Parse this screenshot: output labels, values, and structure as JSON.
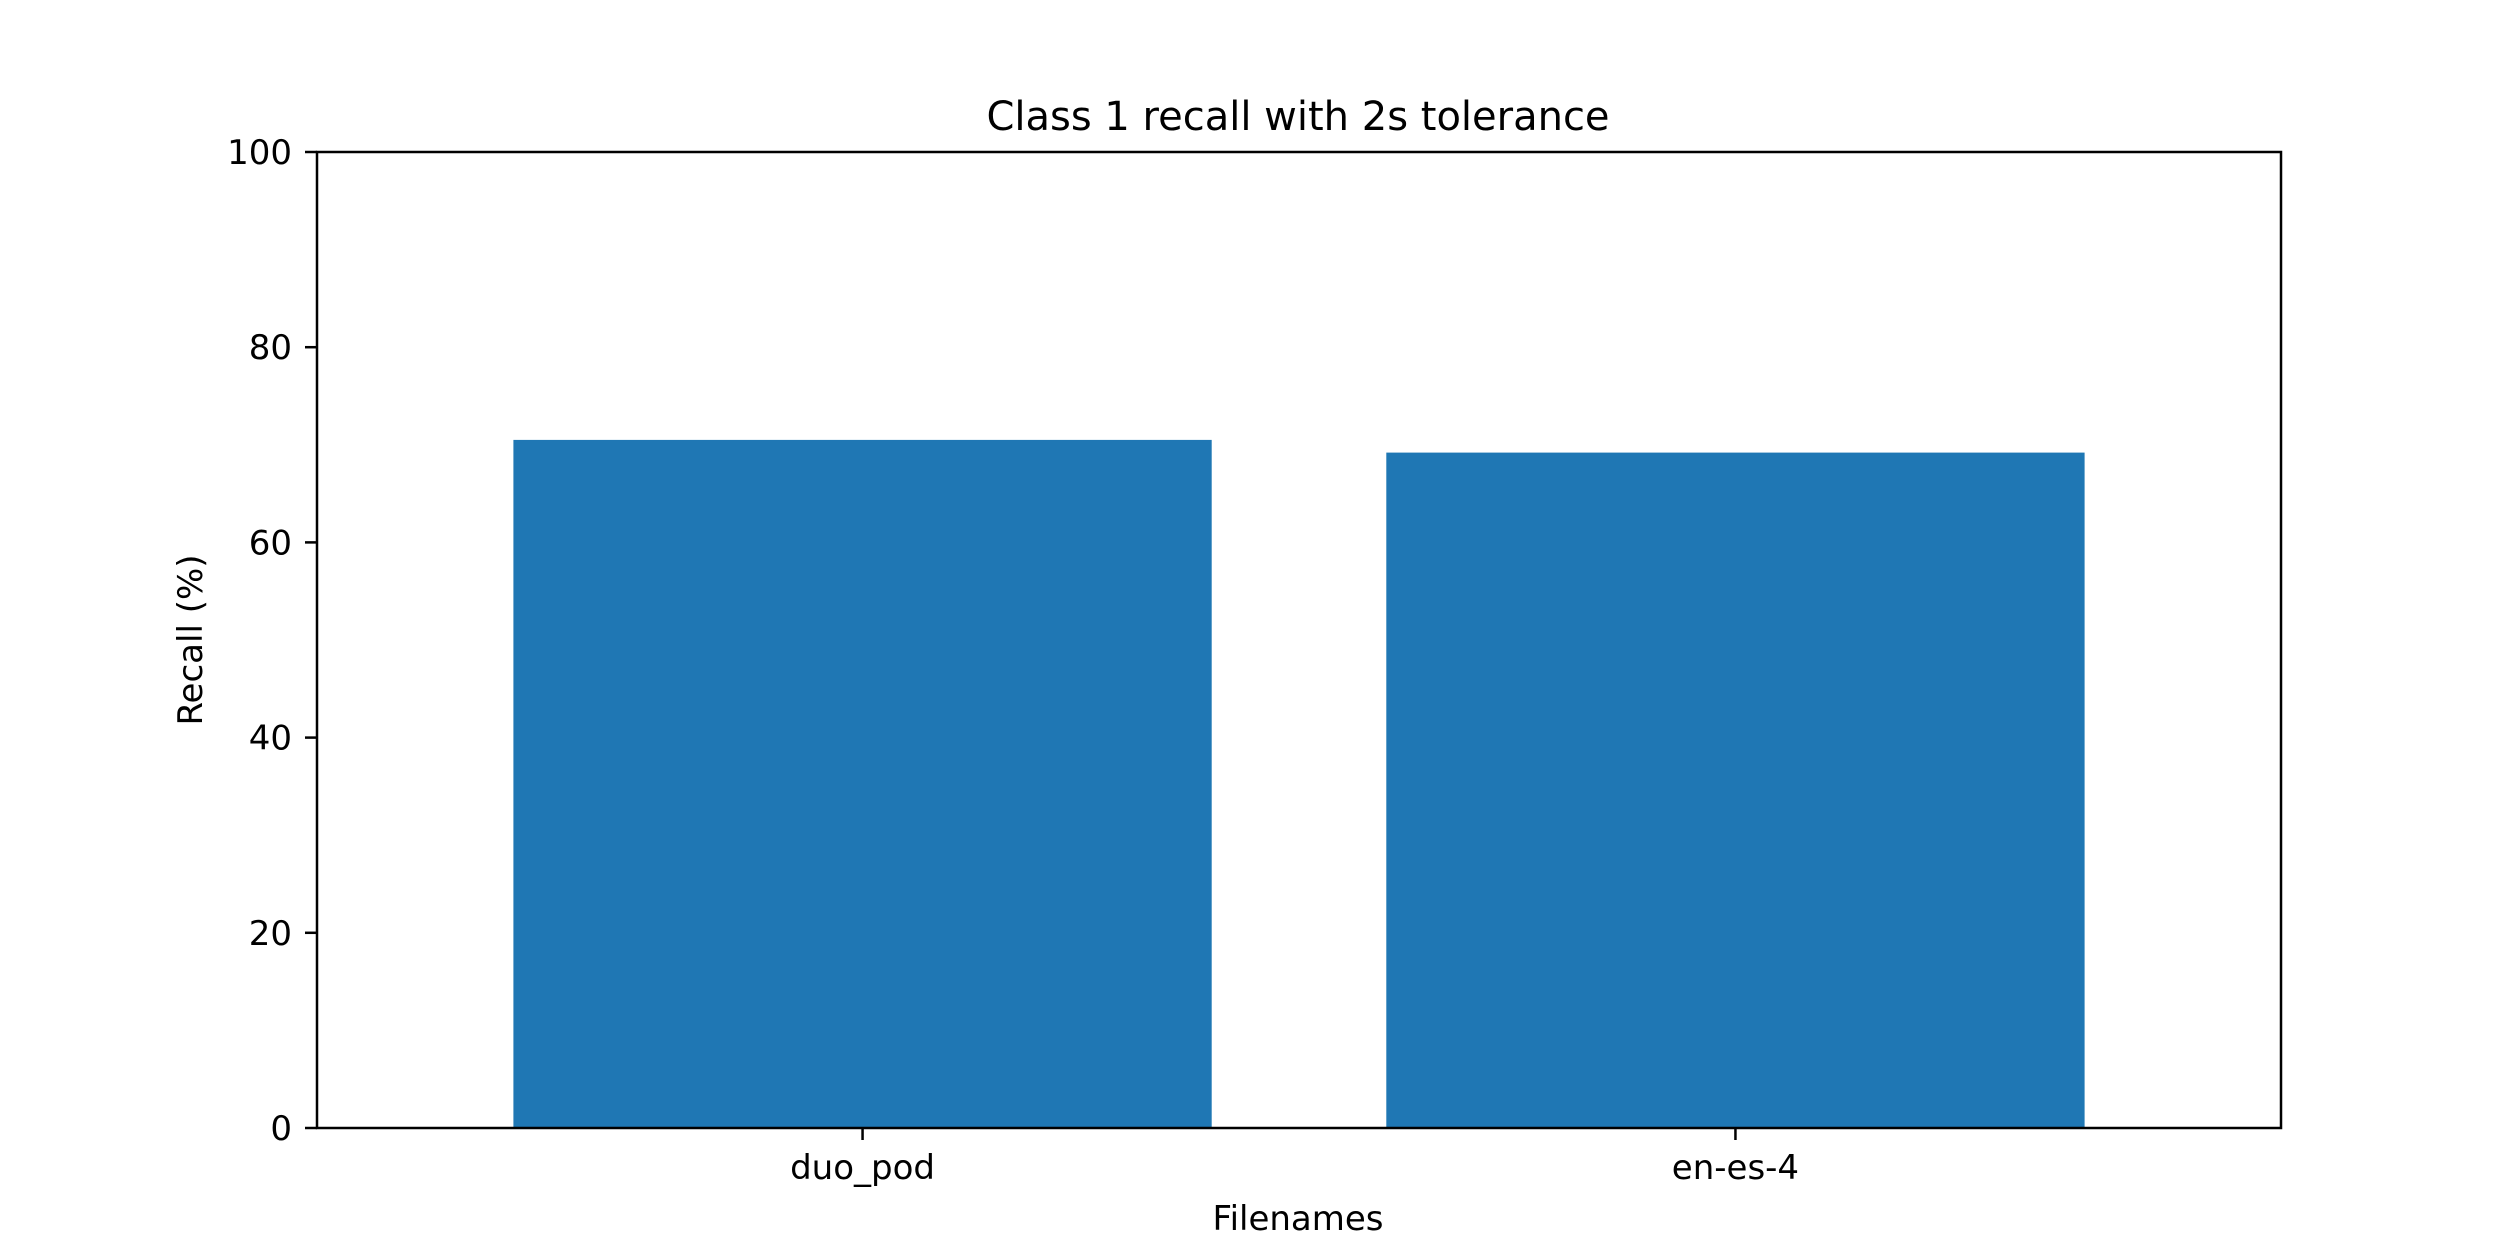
{
  "chart_data": {
    "type": "bar",
    "title": "Class 1 recall with 2s tolerance",
    "xlabel": "Filenames",
    "ylabel": "Recall (%)",
    "categories": [
      "duo_pod",
      "en-es-4"
    ],
    "values": [
      70.5,
      69.2
    ],
    "ylim": [
      0,
      100
    ],
    "yticks": [
      "0",
      "20",
      "40",
      "60",
      "80",
      "100"
    ],
    "grid": false,
    "legend": "none",
    "bar_color": "#1f77b4"
  }
}
